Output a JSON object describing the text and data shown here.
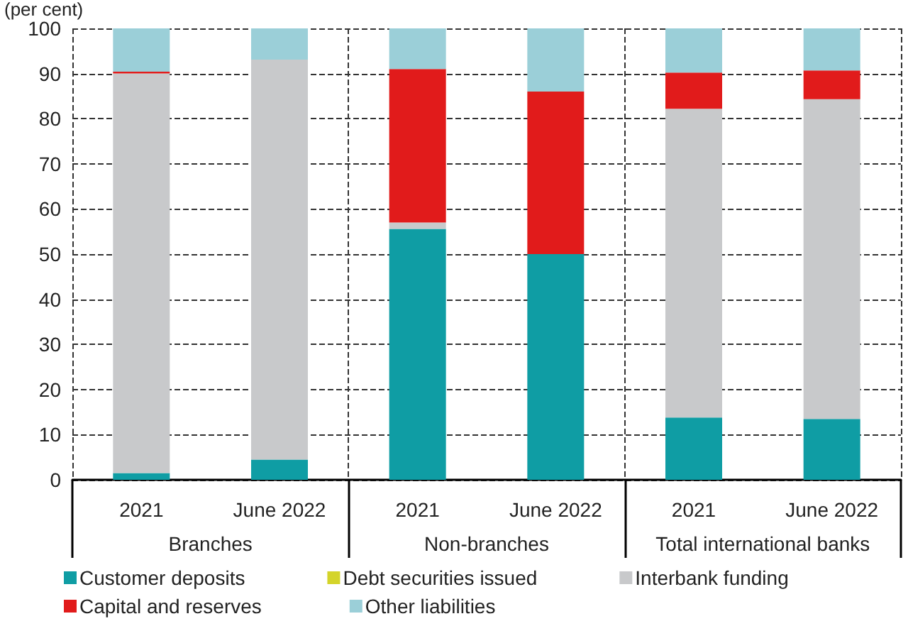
{
  "chart_data": {
    "type": "bar",
    "stacked": true,
    "ylabel": "(per cent)",
    "categories": [
      "2021",
      "June 2022",
      "2021",
      "June 2022",
      "2021",
      "June 2022"
    ],
    "annotations": [
      "Branches",
      "Non-branches",
      "Total international banks"
    ],
    "series": [
      {
        "name": "Customer deposits",
        "color": "#0f9da4",
        "values": [
          1.5,
          4.5,
          55.6,
          50,
          13.8,
          13.5
        ]
      },
      {
        "name": "Debt securities issued",
        "color": "#d4d42a",
        "values": [
          0,
          0,
          0,
          0,
          0,
          0
        ]
      },
      {
        "name": "Interbank funding",
        "color": "#c8c9cb",
        "values": [
          88.5,
          88.6,
          1.4,
          0,
          68.4,
          70.8
        ]
      },
      {
        "name": "Capital and reserves",
        "color": "#e11b1b",
        "values": [
          0.4,
          0,
          34,
          36,
          8,
          6.4
        ]
      },
      {
        "name": "Other liabilities",
        "color": "#9bcfd8",
        "values": [
          9.6,
          6.9,
          9,
          14,
          9.8,
          9.3
        ]
      }
    ],
    "ylim": [
      0,
      100
    ],
    "yticks": [
      0,
      10,
      20,
      30,
      40,
      50,
      60,
      70,
      80,
      90,
      100
    ],
    "grid": "y",
    "legend": "bottom"
  }
}
